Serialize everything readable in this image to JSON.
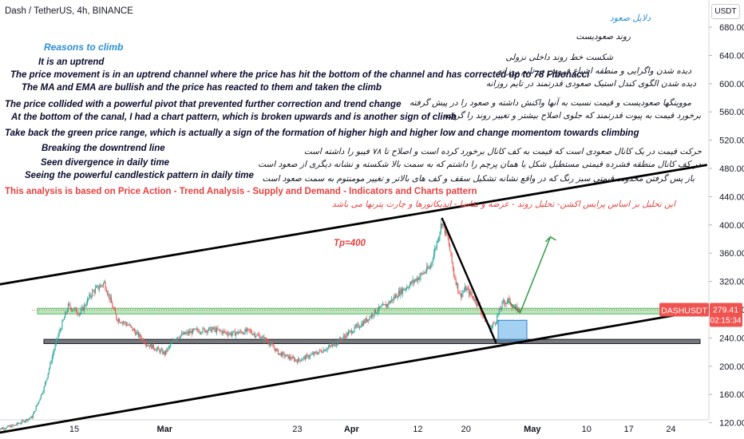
{
  "header": {
    "symbol_title": "Dash / TetherUS, 4h, BINANCE",
    "currency": "USDT"
  },
  "chart_data": {
    "type": "candlestick",
    "ylim": [
      100,
      700
    ],
    "y_ticks": [
      120,
      160,
      200,
      240,
      280,
      320,
      360,
      400,
      440,
      480,
      520,
      560,
      600,
      640,
      680
    ],
    "x_tick_labels": [
      {
        "label": "15",
        "x": "2024-02-15"
      },
      {
        "label": "Mar",
        "x": "2024-03-01"
      },
      {
        "label": "23",
        "x": "2024-03-23"
      },
      {
        "label": "Apr",
        "x": "2024-04-01"
      },
      {
        "label": "12",
        "x": "2024-04-12"
      },
      {
        "label": "20",
        "x": "2024-04-20"
      },
      {
        "label": "May",
        "x": "2024-05-01"
      },
      {
        "label": "10",
        "x": "2024-05-10"
      },
      {
        "label": "17",
        "x": "2024-05-17"
      },
      {
        "label": "24",
        "x": "2024-05-24"
      }
    ],
    "colors": {
      "up": "#26a69a",
      "down": "#ef5350"
    },
    "price_path": [
      {
        "x": "2024-02-02",
        "close": 110
      },
      {
        "x": "2024-02-05",
        "close": 116
      },
      {
        "x": "2024-02-08",
        "close": 128
      },
      {
        "x": "2024-02-10",
        "close": 170
      },
      {
        "x": "2024-02-12",
        "close": 235
      },
      {
        "x": "2024-02-14",
        "close": 285
      },
      {
        "x": "2024-02-16",
        "close": 275
      },
      {
        "x": "2024-02-18",
        "close": 305
      },
      {
        "x": "2024-02-20",
        "close": 318
      },
      {
        "x": "2024-02-22",
        "close": 268
      },
      {
        "x": "2024-02-24",
        "close": 258
      },
      {
        "x": "2024-02-27",
        "close": 232
      },
      {
        "x": "2024-03-01",
        "close": 218
      },
      {
        "x": "2024-03-03",
        "close": 242
      },
      {
        "x": "2024-03-06",
        "close": 250
      },
      {
        "x": "2024-03-09",
        "close": 252
      },
      {
        "x": "2024-03-12",
        "close": 246
      },
      {
        "x": "2024-03-15",
        "close": 250
      },
      {
        "x": "2024-03-18",
        "close": 236
      },
      {
        "x": "2024-03-20",
        "close": 218
      },
      {
        "x": "2024-03-23",
        "close": 208
      },
      {
        "x": "2024-03-26",
        "close": 218
      },
      {
        "x": "2024-03-29",
        "close": 230
      },
      {
        "x": "2024-04-01",
        "close": 250
      },
      {
        "x": "2024-04-03",
        "close": 262
      },
      {
        "x": "2024-04-05",
        "close": 278
      },
      {
        "x": "2024-04-07",
        "close": 288
      },
      {
        "x": "2024-04-09",
        "close": 305
      },
      {
        "x": "2024-04-11",
        "close": 318
      },
      {
        "x": "2024-04-12",
        "close": 325
      },
      {
        "x": "2024-04-14",
        "close": 340
      },
      {
        "x": "2024-04-15",
        "close": 370
      },
      {
        "x": "2024-04-16",
        "close": 405
      },
      {
        "x": "2024-04-17",
        "close": 380
      },
      {
        "x": "2024-04-18",
        "close": 330
      },
      {
        "x": "2024-04-19",
        "close": 300
      },
      {
        "x": "2024-04-20",
        "close": 310
      },
      {
        "x": "2024-04-22",
        "close": 288
      },
      {
        "x": "2024-04-23",
        "close": 268
      },
      {
        "x": "2024-04-24",
        "close": 252
      },
      {
        "x": "2024-04-25",
        "close": 266
      },
      {
        "x": "2024-04-26",
        "close": 288
      },
      {
        "x": "2024-04-27",
        "close": 294
      },
      {
        "x": "2024-04-28",
        "close": 282
      },
      {
        "x": "2024-04-29",
        "close": 279.41
      }
    ],
    "last_price": {
      "label": "DASHUSDT",
      "value": "279.41",
      "countdown": "02:15:34"
    },
    "zones": [
      {
        "name": "green-range",
        "from": 274,
        "to": 282,
        "color": "#7fd68a"
      },
      {
        "name": "pivot-range",
        "from": 232,
        "to": 238,
        "color": "#5d6066"
      }
    ],
    "trendlines": [
      {
        "name": "channel-top",
        "from": {
          "x": "2024-02-02",
          "y": 315
        },
        "to": {
          "x": "2024-05-30",
          "y": 485
        }
      },
      {
        "name": "channel-bottom",
        "from": {
          "x": "2024-02-02",
          "y": 105
        },
        "to": {
          "x": "2024-05-30",
          "y": 280
        }
      },
      {
        "name": "downtrend-line",
        "from": {
          "x": "2024-04-16",
          "y": 410
        },
        "to": {
          "x": "2024-04-25",
          "y": 233
        }
      }
    ],
    "annotations": [
      {
        "name": "target",
        "text": "Tp=400"
      }
    ]
  },
  "notes_en": {
    "heading": "Reasons to climb",
    "lines": [
      "It is an uptrend",
      "The price movement is in an uptrend channel where the price has hit the bottom of the channel and has corrected up to 78 Fibonacci",
      "The MA and EMA are bullish and the price has reacted to them and taken the climb",
      "The price collided with a powerful pivot that prevented further correction and trend change",
      "At the bottom of the canal, I had a chart pattern, which is broken upwards and is another sign of climb",
      "Take back the green price range, which is actually a sign of the formation of higher high and higher low and change  momentom towards climbing",
      "Breaking the downtrend line",
      "Seen divergence in daily time",
      "Seeing the powerful candlestick pattern in daily time"
    ],
    "disclaimer": "This analysis is based on Price Action - Trend Analysis - Supply and Demand - Indicators and Charts pattern"
  },
  "notes_fa": {
    "heading": "دلایل صعود",
    "lines": [
      "روند صعودیست",
      "شکست خط روند داخلی نزولی",
      "دیده شدن واگرایی و منطقه اشباع فروش در تایم روزانه",
      "دیده شدن الگوی کندل استیک صعودی قدرتمند در تایم روزانه",
      "مووینگها صعودیست و قیمت نسبت به آنها واکنش داشته و صعود را در پیش گرفته",
      "برخورد قیمت به پیوت قدرتمند که جلوی اصلاح بیشتر و تغییر روند را گرفته",
      "حرکت قیمت در یک کانال صعودی است که قیمت به کف کانال برخورد کرده است و اصلاح تا ۷۸ فیبو را داشته است",
      "در کف کانال منطقه فشرده قیمتی مستطیل شکل یا همان پرچم را داشتم که به سمت بالا شکسته و نشانه دیگری از صعود است",
      "باز پس گرفتن محدوده قیمتی سبز رنگ که در واقع نشانه تشکیل سقف و کف های بالاتر و تغییر مومنتوم به سمت صعود است"
    ],
    "disclaimer": "این تحلیل بر اساس پرایس اکشن- تحلیل روند - عرضه و تقاضا - اندیکاتورها و چارت پترنها می باشد"
  }
}
